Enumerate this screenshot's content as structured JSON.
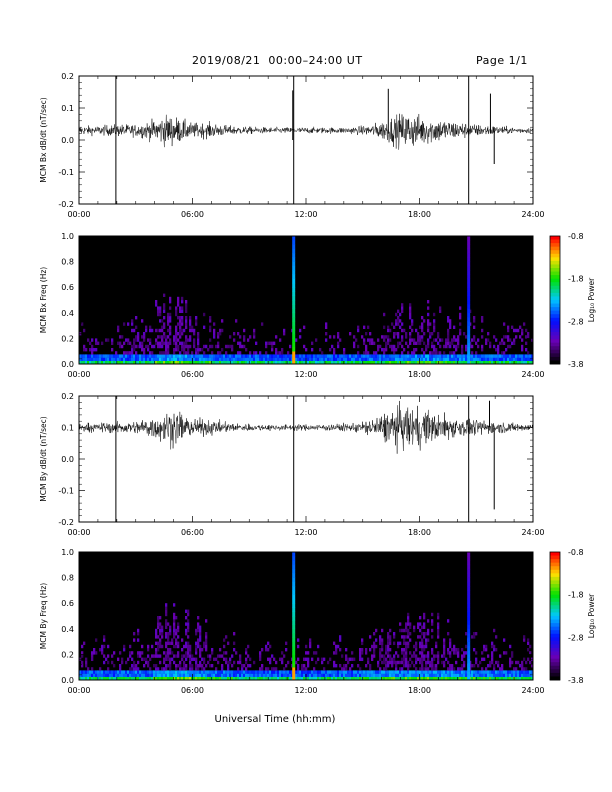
{
  "header": {
    "title": "2019/08/21  00:00–24:00 UT",
    "page": "Page 1/1"
  },
  "xlabel": "Universal Time (hh:mm)",
  "colorscale": [
    "#000000",
    "#6a00b5",
    "#0010ff",
    "#00c8ff",
    "#00e000",
    "#ffe000",
    "#ff0000"
  ],
  "chart_data": [
    {
      "type": "line",
      "id": "bx-ts",
      "ylabel": "MCM Bx dB/dt (nT/sec)",
      "xlim": [
        0,
        24
      ],
      "x_ticks": [
        "00:00",
        "06:00",
        "12:00",
        "18:00",
        "24:00"
      ],
      "ylim": [
        -0.2,
        0.2
      ],
      "y_ticks": [
        "-0.2",
        "-0.1",
        "0.0",
        "0.1",
        "0.2"
      ],
      "baseline": 0.03,
      "series": [
        {
          "x": [
            0,
            1,
            2,
            3,
            4,
            4.5,
            5,
            5.5,
            6,
            7,
            8,
            9,
            10,
            11,
            12,
            13,
            14,
            15,
            15.5,
            16,
            16.5,
            17,
            17.5,
            18,
            18.5,
            19,
            20,
            21,
            22,
            23,
            24
          ],
          "amplitude": [
            0.015,
            0.015,
            0.02,
            0.02,
            0.035,
            0.05,
            0.05,
            0.035,
            0.025,
            0.025,
            0.015,
            0.012,
            0.01,
            0.01,
            0.01,
            0.01,
            0.01,
            0.015,
            0.02,
            0.03,
            0.045,
            0.055,
            0.06,
            0.05,
            0.045,
            0.04,
            0.03,
            0.02,
            0.015,
            0.01,
            0.01
          ]
        }
      ],
      "spikes": [
        {
          "t": 1.95,
          "min": -0.2,
          "max": 0.2
        },
        {
          "t": 11.3,
          "min": 0.0,
          "max": 0.155
        },
        {
          "t": 11.35,
          "min": -0.2,
          "max": 0.2
        },
        {
          "t": 16.35,
          "min": 0.02,
          "max": 0.16
        },
        {
          "t": 20.6,
          "min": -0.2,
          "max": 0.2
        },
        {
          "t": 21.75,
          "min": 0.02,
          "max": 0.145
        },
        {
          "t": 21.95,
          "min": -0.075,
          "max": 0.04
        }
      ]
    },
    {
      "type": "heatmap",
      "id": "bx-spec",
      "ylabel": "MCM Bx Freq (Hz)",
      "xlim": [
        0,
        24
      ],
      "x_ticks": [
        "00:00",
        "06:00",
        "12:00",
        "18:00",
        "24:00"
      ],
      "ylim": [
        0,
        1
      ],
      "y_ticks": [
        "0.0",
        "0.2",
        "0.4",
        "0.6",
        "0.8",
        "1.0"
      ],
      "colorbar": {
        "label": "Log₁₀ Power",
        "range": [
          -3.8,
          -0.8
        ],
        "ticks": [
          "-0.8",
          "-1.8",
          "-2.8",
          "-3.8"
        ]
      },
      "activity": [
        0.3,
        0.3,
        0.35,
        0.4,
        0.7,
        0.75,
        0.55,
        0.4,
        0.35,
        0.3,
        0.25,
        0.25,
        0.25,
        0.3,
        0.35,
        0.4,
        0.55,
        0.6,
        0.6,
        0.55,
        0.5,
        0.45,
        0.4,
        0.35,
        0.3
      ],
      "broadband_lines": [
        {
          "t": 11.35,
          "level": 1.0
        },
        {
          "t": 20.6,
          "level": 0.8
        }
      ]
    },
    {
      "type": "line",
      "id": "by-ts",
      "ylabel": "MCM By dB/dt (nT/sec)",
      "xlim": [
        0,
        24
      ],
      "x_ticks": [
        "00:00",
        "06:00",
        "12:00",
        "18:00",
        "24:00"
      ],
      "ylim": [
        -0.2,
        0.2
      ],
      "y_ticks": [
        "-0.2",
        "-0.1",
        "0.0",
        "0.1",
        "0.2"
      ],
      "baseline": 0.1,
      "series": [
        {
          "x": [
            0,
            1,
            2,
            3,
            4,
            4.5,
            5,
            5.5,
            6,
            7,
            8,
            9,
            10,
            11,
            12,
            13,
            14,
            15,
            15.5,
            16,
            16.5,
            17,
            17.5,
            18,
            18.5,
            19,
            20,
            21,
            22,
            23,
            24
          ],
          "amplitude": [
            0.015,
            0.015,
            0.02,
            0.02,
            0.04,
            0.055,
            0.06,
            0.045,
            0.03,
            0.025,
            0.015,
            0.012,
            0.01,
            0.01,
            0.01,
            0.012,
            0.012,
            0.02,
            0.03,
            0.045,
            0.06,
            0.07,
            0.075,
            0.065,
            0.055,
            0.045,
            0.035,
            0.025,
            0.02,
            0.015,
            0.015
          ]
        }
      ],
      "spikes": [
        {
          "t": 1.95,
          "min": -0.2,
          "max": 0.2
        },
        {
          "t": 11.35,
          "min": -0.2,
          "max": 0.2
        },
        {
          "t": 20.6,
          "min": -0.2,
          "max": 0.2
        },
        {
          "t": 21.7,
          "min": 0.1,
          "max": 0.185
        },
        {
          "t": 21.95,
          "min": -0.16,
          "max": 0.1
        }
      ]
    },
    {
      "type": "heatmap",
      "id": "by-spec",
      "ylabel": "MCM By Freq (Hz)",
      "xlim": [
        0,
        24
      ],
      "x_ticks": [
        "00:00",
        "06:00",
        "12:00",
        "18:00",
        "24:00"
      ],
      "ylim": [
        0,
        1
      ],
      "y_ticks": [
        "0.0",
        "0.2",
        "0.4",
        "0.6",
        "0.8",
        "1.0"
      ],
      "colorbar": {
        "label": "Log₁₀ Power",
        "range": [
          -3.8,
          -0.8
        ],
        "ticks": [
          "-0.8",
          "-1.8",
          "-2.8",
          "-3.8"
        ]
      },
      "activity": [
        0.35,
        0.35,
        0.4,
        0.45,
        0.75,
        0.8,
        0.6,
        0.45,
        0.4,
        0.35,
        0.3,
        0.3,
        0.3,
        0.35,
        0.4,
        0.45,
        0.6,
        0.65,
        0.65,
        0.6,
        0.55,
        0.5,
        0.45,
        0.4,
        0.35
      ],
      "broadband_lines": [
        {
          "t": 11.35,
          "level": 1.0
        },
        {
          "t": 20.6,
          "level": 0.8
        }
      ]
    }
  ]
}
